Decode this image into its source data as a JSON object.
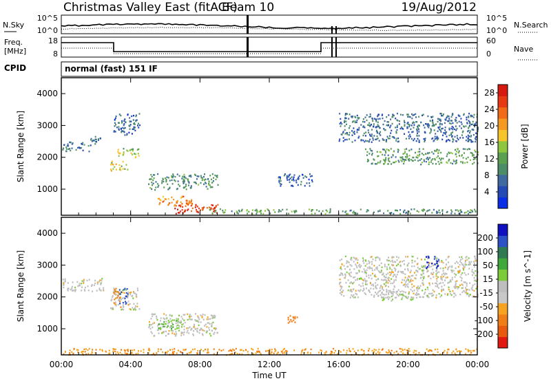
{
  "header": {
    "station": "Christmas Valley East (fitACF)",
    "beam": "Beam 10",
    "date": "19/Aug/2012"
  },
  "noise_panel": {
    "left_label": "N.Sky",
    "right_label": "N.Search",
    "left_ticks": [
      "10^5",
      "10^0"
    ],
    "right_ticks": [
      "10^5",
      "10^0"
    ]
  },
  "freq_panel": {
    "left_label_line1": "Freq.",
    "left_label_line2": "[MHz]",
    "right_label": "Nave",
    "left_ticks": [
      "18",
      "8"
    ],
    "right_ticks": [
      "60",
      "0"
    ]
  },
  "cpid_panel": {
    "label": "CPID",
    "text": "normal (fast) 151 IF"
  },
  "x_axis": {
    "label": "Time UT",
    "ticks": [
      "00:00",
      "04:00",
      "08:00",
      "12:00",
      "16:00",
      "20:00",
      "00:00"
    ]
  },
  "colors": {
    "power_scale": [
      "#0a2ee6",
      "#244ab5",
      "#3f6aa0",
      "#4d8c68",
      "#5aa050",
      "#8ec63f",
      "#f5c52a",
      "#f59a20",
      "#f06a18",
      "#e63a14",
      "#d61a10"
    ],
    "velocity_scale": [
      "#1010c0",
      "#2d52c8",
      "#2f7a50",
      "#3fa83a",
      "#7ccc3a",
      "#bebebe",
      "#c8c8c8",
      "#f5a320",
      "#f07e18",
      "#e85a10",
      "#e01a10"
    ]
  },
  "chart_data": [
    {
      "type": "heatmap",
      "title": "Power",
      "ylabel": "Slant Range [km]",
      "xlabel": "",
      "x_range_hours": [
        0,
        24
      ],
      "ylim": [
        180,
        4500
      ],
      "y_ticks": [
        1000,
        2000,
        3000,
        4000
      ],
      "colorbar": {
        "label": "Power [dB]",
        "range": [
          0,
          30
        ],
        "ticks": [
          4,
          8,
          12,
          16,
          20,
          24,
          28
        ]
      },
      "regions": [
        {
          "t0": 0.0,
          "t1": 1.6,
          "r0": 2200,
          "r1": 2500,
          "value": 8
        },
        {
          "t0": 1.6,
          "t1": 2.4,
          "r0": 2400,
          "r1": 2700,
          "value": 7
        },
        {
          "t0": 2.8,
          "t1": 3.8,
          "r0": 1600,
          "r1": 1900,
          "value": 16
        },
        {
          "t0": 3.2,
          "t1": 4.5,
          "r0": 2000,
          "r1": 2300,
          "value": 14
        },
        {
          "t0": 3.0,
          "t1": 4.5,
          "r0": 2700,
          "r1": 3400,
          "value": 6
        },
        {
          "t0": 5.0,
          "t1": 9.0,
          "r0": 1000,
          "r1": 1500,
          "value": 10
        },
        {
          "t0": 5.5,
          "t1": 7.5,
          "r0": 500,
          "r1": 800,
          "value": 22
        },
        {
          "t0": 6.5,
          "t1": 9.0,
          "r0": 250,
          "r1": 600,
          "value": 26
        },
        {
          "t0": 8.5,
          "t1": 15.5,
          "r0": 250,
          "r1": 400,
          "value": 12
        },
        {
          "t0": 12.5,
          "t1": 14.5,
          "r0": 1100,
          "r1": 1500,
          "value": 6
        },
        {
          "t0": 16.0,
          "t1": 24.0,
          "r0": 2500,
          "r1": 3400,
          "value": 7
        },
        {
          "t0": 17.5,
          "t1": 24.0,
          "r0": 1800,
          "r1": 2300,
          "value": 11
        },
        {
          "t0": 16.0,
          "t1": 24.0,
          "r0": 250,
          "r1": 400,
          "value": 10
        }
      ]
    },
    {
      "type": "heatmap",
      "title": "Velocity",
      "ylabel": "Slant Range [km]",
      "xlabel": "Time UT",
      "x_range_hours": [
        0,
        24
      ],
      "ylim": [
        180,
        4500
      ],
      "y_ticks": [
        1000,
        2000,
        3000,
        4000
      ],
      "colorbar": {
        "label": "Velocity [m s^-1]",
        "range": [
          -250,
          250
        ],
        "ticks": [
          200,
          100,
          50,
          15,
          -15,
          -50,
          -100,
          -200
        ]
      },
      "regions": [
        {
          "t0": 0.0,
          "t1": 2.4,
          "r0": 2200,
          "r1": 2600,
          "value": 0
        },
        {
          "t0": 2.8,
          "t1": 4.5,
          "r0": 1600,
          "r1": 2300,
          "value": 0
        },
        {
          "t0": 3.3,
          "t1": 3.8,
          "r0": 1800,
          "r1": 2300,
          "value": 120
        },
        {
          "t0": 3.0,
          "t1": 3.4,
          "r0": 1700,
          "r1": 2300,
          "value": -60
        },
        {
          "t0": 5.0,
          "t1": 9.0,
          "r0": 800,
          "r1": 1500,
          "value": 0
        },
        {
          "t0": 5.5,
          "t1": 7.0,
          "r0": 1000,
          "r1": 1300,
          "value": 40
        },
        {
          "t0": 0.0,
          "t1": 24.0,
          "r0": 200,
          "r1": 400,
          "value": -40
        },
        {
          "t0": 13.0,
          "t1": 13.8,
          "r0": 1200,
          "r1": 1450,
          "value": -80
        },
        {
          "t0": 16.0,
          "t1": 24.0,
          "r0": 2000,
          "r1": 3300,
          "value": 0
        },
        {
          "t0": 21.0,
          "t1": 21.8,
          "r0": 2900,
          "r1": 3300,
          "value": 200
        },
        {
          "t0": 18.5,
          "t1": 20.5,
          "r0": 1900,
          "r1": 2200,
          "value": 10
        }
      ]
    }
  ]
}
